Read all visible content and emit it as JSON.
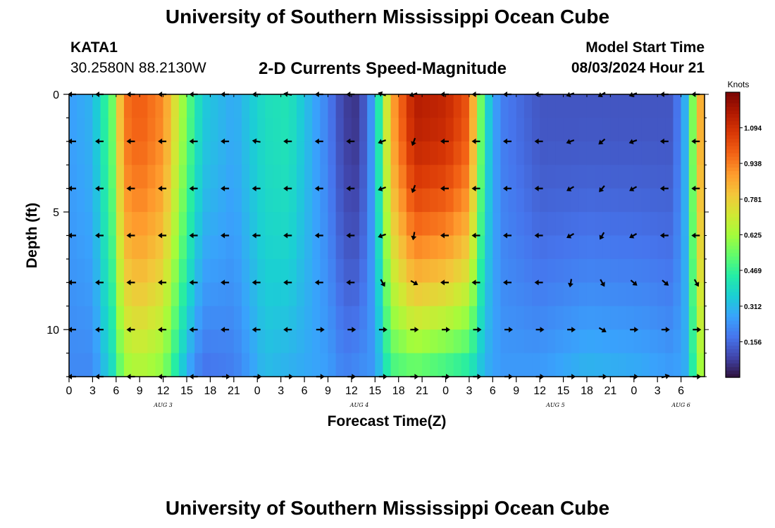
{
  "header": {
    "title": "University of Southern Mississippi Ocean Cube",
    "station": "KATA1",
    "coords": "30.2580N  88.2130W",
    "chart_title": "2-D Currents Speed-Magnitude",
    "start_label": "Model Start Time",
    "start_value": "08/03/2024 Hour 21"
  },
  "footer": {
    "title": "University of Southern Mississippi Ocean Cube"
  },
  "colors": {
    "colormap": [
      "#30123b",
      "#4145ab",
      "#4675ed",
      "#39a2fc",
      "#1bcfd4",
      "#24eca6",
      "#61fc6c",
      "#a4fc3b",
      "#d1e834",
      "#f3c63a",
      "#fe9b2d",
      "#f36315",
      "#d93806",
      "#b11901",
      "#7a0403"
    ],
    "arrow": "#000000"
  },
  "chart_data": {
    "type": "heatmap",
    "title": "2-D Currents Speed-Magnitude",
    "xlabel": "Forecast Time(Z)",
    "ylabel": "Depth (ft)",
    "x_range_hours": [
      0,
      81
    ],
    "y_range_ft": [
      0,
      12
    ],
    "x_tick_labels": [
      "0",
      "3",
      "6",
      "9",
      "12",
      "15",
      "18",
      "21",
      "0",
      "3",
      "6",
      "9",
      "12",
      "15",
      "18",
      "21",
      "0",
      "3",
      "6",
      "9",
      "12",
      "15",
      "18",
      "21",
      "0",
      "3",
      "6"
    ],
    "y_tick_labels": [
      "0",
      "5",
      "10"
    ],
    "y_tick_values": [
      0,
      5,
      10
    ],
    "date_labels": [
      {
        "hour": 12,
        "label": "AUG 3"
      },
      {
        "hour": 37,
        "label": "AUG 4"
      },
      {
        "hour": 62,
        "label": "AUG 5"
      },
      {
        "hour": 78,
        "label": "AUG 6"
      }
    ],
    "colorbar_label": "Knots",
    "colorbar_ticks": [
      "0.156",
      "0.312",
      "0.469",
      "0.625",
      "0.781",
      "0.938",
      "1.094"
    ],
    "colorbar_range": [
      0,
      1.25
    ],
    "cell_hours": 1,
    "depth_rows": [
      0,
      1,
      2,
      3,
      4,
      5,
      6,
      7,
      8,
      9,
      10,
      11
    ],
    "speed_profiles": [
      {
        "hour": 0,
        "surface": 0.26,
        "bottom": 0.22
      },
      {
        "hour": 3,
        "surface": 0.3,
        "bottom": 0.22
      },
      {
        "hour": 5.5,
        "surface": 0.55,
        "bottom": 0.4
      },
      {
        "hour": 7,
        "surface": 0.95,
        "bottom": 0.62
      },
      {
        "hour": 9,
        "surface": 1.0,
        "bottom": 0.66
      },
      {
        "hour": 12,
        "surface": 0.92,
        "bottom": 0.6
      },
      {
        "hour": 15,
        "surface": 0.55,
        "bottom": 0.3
      },
      {
        "hour": 17,
        "surface": 0.35,
        "bottom": 0.18
      },
      {
        "hour": 21,
        "surface": 0.28,
        "bottom": 0.2
      },
      {
        "hour": 25,
        "surface": 0.4,
        "bottom": 0.32
      },
      {
        "hour": 28,
        "surface": 0.42,
        "bottom": 0.3
      },
      {
        "hour": 33,
        "surface": 0.2,
        "bottom": 0.26
      },
      {
        "hour": 35,
        "surface": 0.08,
        "bottom": 0.2
      },
      {
        "hour": 37,
        "surface": 0.06,
        "bottom": 0.22
      },
      {
        "hour": 39,
        "surface": 0.3,
        "bottom": 0.25
      },
      {
        "hour": 41,
        "surface": 0.85,
        "bottom": 0.5
      },
      {
        "hour": 44,
        "surface": 1.15,
        "bottom": 0.55
      },
      {
        "hour": 48,
        "surface": 1.12,
        "bottom": 0.5
      },
      {
        "hour": 51,
        "surface": 1.0,
        "bottom": 0.45
      },
      {
        "hour": 53,
        "surface": 0.4,
        "bottom": 0.3
      },
      {
        "hour": 55,
        "surface": 0.2,
        "bottom": 0.25
      },
      {
        "hour": 60,
        "surface": 0.12,
        "bottom": 0.25
      },
      {
        "hour": 66,
        "surface": 0.12,
        "bottom": 0.3
      },
      {
        "hour": 73,
        "surface": 0.12,
        "bottom": 0.28
      },
      {
        "hour": 77,
        "surface": 0.12,
        "bottom": 0.25
      },
      {
        "hour": 79,
        "surface": 0.35,
        "bottom": 0.3
      },
      {
        "hour": 80,
        "surface": 0.8,
        "bottom": 0.6
      },
      {
        "hour": 81,
        "surface": 0.9,
        "bottom": 0.65
      }
    ],
    "arrow_hours": [
      0,
      3.5,
      7.5,
      11.5,
      15.5,
      19.5,
      23.5,
      27.5,
      31.5,
      35.5,
      39.5,
      43.5,
      47.5,
      51.5,
      55.5,
      59.5,
      63.5,
      67.5,
      71.5,
      75.5,
      79.5
    ],
    "arrow_depths_ft": [
      0,
      2,
      4,
      6,
      8,
      10,
      12
    ],
    "arrow_directions_deg": [
      [
        180,
        180,
        180,
        180,
        180,
        180,
        180,
        170,
        180,
        180,
        160,
        200,
        180,
        180,
        180,
        180,
        200,
        210,
        200,
        180,
        180
      ],
      [
        180,
        180,
        180,
        180,
        180,
        180,
        170,
        180,
        180,
        180,
        200,
        250,
        180,
        180,
        180,
        180,
        200,
        220,
        200,
        180,
        180
      ],
      [
        180,
        180,
        180,
        180,
        180,
        180,
        180,
        180,
        180,
        180,
        200,
        250,
        180,
        180,
        180,
        180,
        210,
        230,
        210,
        180,
        180
      ],
      [
        180,
        180,
        180,
        180,
        180,
        180,
        180,
        180,
        180,
        180,
        200,
        260,
        180,
        180,
        180,
        180,
        210,
        240,
        210,
        180,
        180
      ],
      [
        180,
        180,
        180,
        180,
        180,
        180,
        180,
        180,
        180,
        180,
        300,
        330,
        180,
        180,
        180,
        180,
        260,
        300,
        320,
        320,
        300
      ],
      [
        180,
        180,
        180,
        180,
        180,
        180,
        180,
        180,
        0,
        0,
        0,
        0,
        0,
        0,
        0,
        0,
        0,
        330,
        0,
        0,
        0
      ],
      [
        180,
        180,
        180,
        180,
        180,
        0,
        0,
        0,
        0,
        0,
        0,
        0,
        0,
        0,
        0,
        0,
        0,
        0,
        0,
        15,
        0
      ]
    ]
  }
}
